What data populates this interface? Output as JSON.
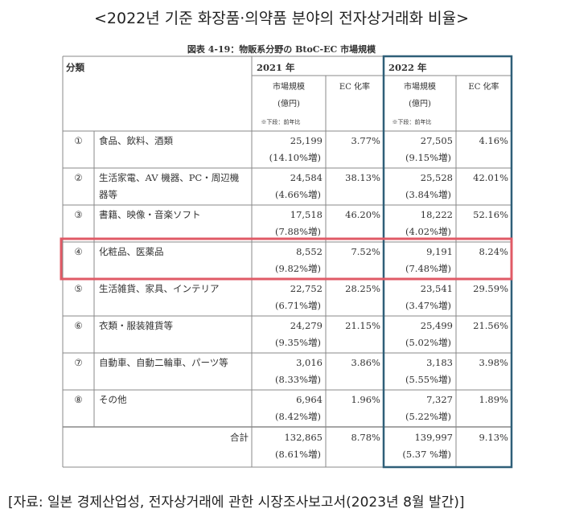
{
  "heading": "<2022년 기준 화장품·의약품 분야의 전자상거래화 비율>",
  "caption": "図表 4-19：物販系分野の BtoC-EC 市場規模",
  "footer": "[자료: 일본 경제산업성, 전자상거래에 관한 시장조사보고서(2023년 8월 발간)]",
  "table": {
    "category_header": "分類",
    "years": [
      "2021 年",
      "2022 年"
    ],
    "col_market_1": "市場規模",
    "col_market_2": "(億円)",
    "col_market_note": "※下段：前年比",
    "col_ec": "EC 化率",
    "rows": [
      {
        "num": "①",
        "cat1": "食品、飲料、酒類",
        "cat2": "",
        "m21": "25,199",
        "g21": "(14.10%増)",
        "ec21": "3.77%",
        "m22": "27,505",
        "g22": "(9.15%増)",
        "ec22": "4.16%"
      },
      {
        "num": "②",
        "cat1": "生活家電、AV 機器、PC・周辺機",
        "cat2": "器等",
        "m21": "24,584",
        "g21": "(4.66%増)",
        "ec21": "38.13%",
        "m22": "25,528",
        "g22": "(3.84%増)",
        "ec22": "42.01%"
      },
      {
        "num": "③",
        "cat1": "書籍、映像・音楽ソフト",
        "cat2": "",
        "m21": "17,518",
        "g21": "(7.88%増)",
        "ec21": "46.20%",
        "m22": "18,222",
        "g22": "(4.02%増)",
        "ec22": "52.16%"
      },
      {
        "num": "④",
        "cat1": "化粧品、医薬品",
        "cat2": "",
        "m21": "8,552",
        "g21": "(9.82%増)",
        "ec21": "7.52%",
        "m22": "9,191",
        "g22": "(7.48%増)",
        "ec22": "8.24%"
      },
      {
        "num": "⑤",
        "cat1": "生活雑貨、家具、インテリア",
        "cat2": "",
        "m21": "22,752",
        "g21": "(6.71%増)",
        "ec21": "28.25%",
        "m22": "23,541",
        "g22": "(3.47%増)",
        "ec22": "29.59%"
      },
      {
        "num": "⑥",
        "cat1": "衣類・服装雑貨等",
        "cat2": "",
        "m21": "24,279",
        "g21": "(9.35%増)",
        "ec21": "21.15%",
        "m22": "25,499",
        "g22": "(5.02%増)",
        "ec22": "21.56%"
      },
      {
        "num": "⑦",
        "cat1": "自動車、自動二輪車、パーツ等",
        "cat2": "",
        "m21": "3,016",
        "g21": "(8.33%増)",
        "ec21": "3.86%",
        "m22": "3,183",
        "g22": "(5.55%増)",
        "ec22": "3.98%"
      },
      {
        "num": "⑧",
        "cat1": "その他",
        "cat2": "",
        "m21": "6,964",
        "g21": "(8.42%増)",
        "ec21": "1.96%",
        "m22": "7,327",
        "g22": "(5.22%増)",
        "ec22": "1.89%"
      }
    ],
    "total": {
      "label": "合計",
      "m21": "132,865",
      "g21": "(8.61%増)",
      "ec21": "8.78%",
      "m22": "139,997",
      "g22": "(5.37 %増)",
      "ec22": "9.13%"
    },
    "highlight_row": "④",
    "colors": {
      "highlight_box": "#e05a66",
      "year_2022_box": "#2f5f78",
      "rule": "#888888"
    }
  }
}
